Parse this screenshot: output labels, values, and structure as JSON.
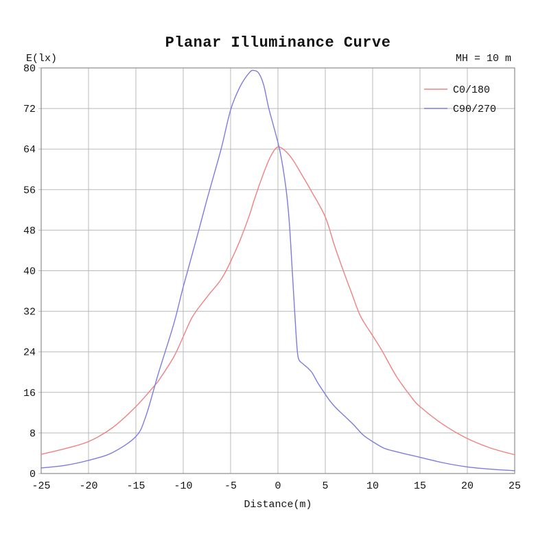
{
  "chart_data": {
    "type": "line",
    "title": "Planar Illuminance Curve",
    "xlabel": "Distance(m)",
    "ylabel": "E(lx)",
    "annotation": "MH = 10 m",
    "xlim": [
      -25,
      25
    ],
    "ylim": [
      0,
      80
    ],
    "xticks": [
      -25,
      -20,
      -15,
      -10,
      -5,
      0,
      5,
      10,
      15,
      20,
      25
    ],
    "yticks": [
      0,
      8,
      16,
      24,
      32,
      40,
      48,
      56,
      64,
      72,
      80
    ],
    "grid": true,
    "legend_position": "top-right",
    "series": [
      {
        "name": "C0/180",
        "color": "#f08080",
        "points": [
          [
            -25,
            3.8
          ],
          [
            -22.5,
            4.9
          ],
          [
            -20,
            6.3
          ],
          [
            -17.5,
            9.0
          ],
          [
            -15,
            13.2
          ],
          [
            -13,
            17.4
          ],
          [
            -12.5,
            18.6
          ],
          [
            -11,
            23.0
          ],
          [
            -10,
            27.0
          ],
          [
            -9,
            31.0
          ],
          [
            -7.5,
            34.8
          ],
          [
            -6,
            38.3
          ],
          [
            -5,
            41.8
          ],
          [
            -4,
            46.0
          ],
          [
            -3,
            51.0
          ],
          [
            -2.5,
            54.0
          ],
          [
            -1.5,
            59.3
          ],
          [
            -0.7,
            62.8
          ],
          [
            0,
            64.4
          ],
          [
            0.8,
            63.6
          ],
          [
            1.6,
            61.8
          ],
          [
            2.5,
            59.0
          ],
          [
            3.5,
            55.8
          ],
          [
            5,
            50.6
          ],
          [
            6,
            44.8
          ],
          [
            7,
            39.5
          ],
          [
            7.8,
            35.5
          ],
          [
            8.6,
            31.5
          ],
          [
            9.3,
            29.2
          ],
          [
            10,
            27.2
          ],
          [
            11,
            24.2
          ],
          [
            12.5,
            19.2
          ],
          [
            14,
            15.3
          ],
          [
            15,
            13.2
          ],
          [
            17.5,
            9.6
          ],
          [
            20,
            6.9
          ],
          [
            22.5,
            5.0
          ],
          [
            25,
            3.7
          ]
        ]
      },
      {
        "name": "C90/270",
        "color": "#7b7be0",
        "points": [
          [
            -25,
            1.1
          ],
          [
            -22.5,
            1.6
          ],
          [
            -20,
            2.6
          ],
          [
            -17.5,
            4.1
          ],
          [
            -15,
            7.3
          ],
          [
            -14,
            11.0
          ],
          [
            -13,
            17.3
          ],
          [
            -12.5,
            20.5
          ],
          [
            -11,
            29.5
          ],
          [
            -10,
            36.8
          ],
          [
            -8.5,
            47.0
          ],
          [
            -7.5,
            54.0
          ],
          [
            -6,
            64.0
          ],
          [
            -5,
            71.7
          ],
          [
            -4,
            76.3
          ],
          [
            -3,
            79.1
          ],
          [
            -2.5,
            79.5
          ],
          [
            -2,
            78.9
          ],
          [
            -1.5,
            76.6
          ],
          [
            -1,
            72.3
          ],
          [
            -0.5,
            68.8
          ],
          [
            0,
            65.3
          ],
          [
            0.4,
            61.8
          ],
          [
            0.9,
            55.5
          ],
          [
            1.2,
            49.5
          ],
          [
            1.45,
            42.0
          ],
          [
            1.7,
            34.0
          ],
          [
            1.95,
            26.5
          ],
          [
            2.15,
            22.8
          ],
          [
            2.6,
            21.7
          ],
          [
            3.1,
            20.9
          ],
          [
            3.6,
            19.9
          ],
          [
            4.2,
            17.9
          ],
          [
            4.8,
            16.2
          ],
          [
            5.5,
            14.3
          ],
          [
            6.2,
            12.8
          ],
          [
            7,
            11.4
          ],
          [
            8,
            9.6
          ],
          [
            9,
            7.6
          ],
          [
            10,
            6.3
          ],
          [
            11.2,
            5.0
          ],
          [
            12.5,
            4.3
          ],
          [
            15,
            3.2
          ],
          [
            17.5,
            2.1
          ],
          [
            20,
            1.3
          ],
          [
            22.5,
            0.85
          ],
          [
            25,
            0.55
          ]
        ]
      }
    ]
  },
  "colors": {
    "grid": "#b9b9b9",
    "border": "#8c8c8c",
    "text": "#111111",
    "background": "#ffffff"
  }
}
